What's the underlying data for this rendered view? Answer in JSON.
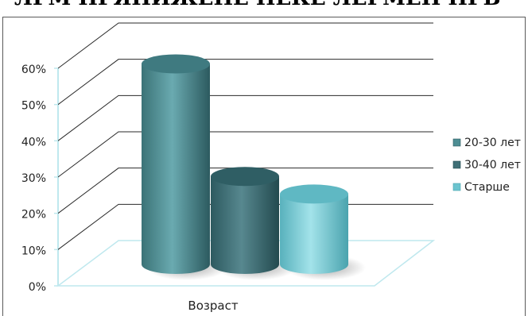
{
  "header": {
    "title_fragment": "ЛРМ ПРЯНИЖЕНЕ ПЕКЕ ЛЕРМЕН ПРВ"
  },
  "chart_data": {
    "type": "bar",
    "style": "3d-cylinder",
    "categories": [
      "Возраст"
    ],
    "series": [
      {
        "name": "20-30 лет",
        "values": [
          57
        ],
        "color": "#4e8e93"
      },
      {
        "name": "30-40 лет",
        "values": [
          25
        ],
        "color": "#3f6f76"
      },
      {
        "name": "Старше",
        "values": [
          20
        ],
        "color": "#6cc4cf"
      }
    ],
    "ylim": [
      0,
      60
    ],
    "yticks": [
      "0%",
      "10%",
      "20%",
      "30%",
      "40%",
      "50%",
      "60%"
    ],
    "grid": true,
    "legend_position": "right"
  }
}
